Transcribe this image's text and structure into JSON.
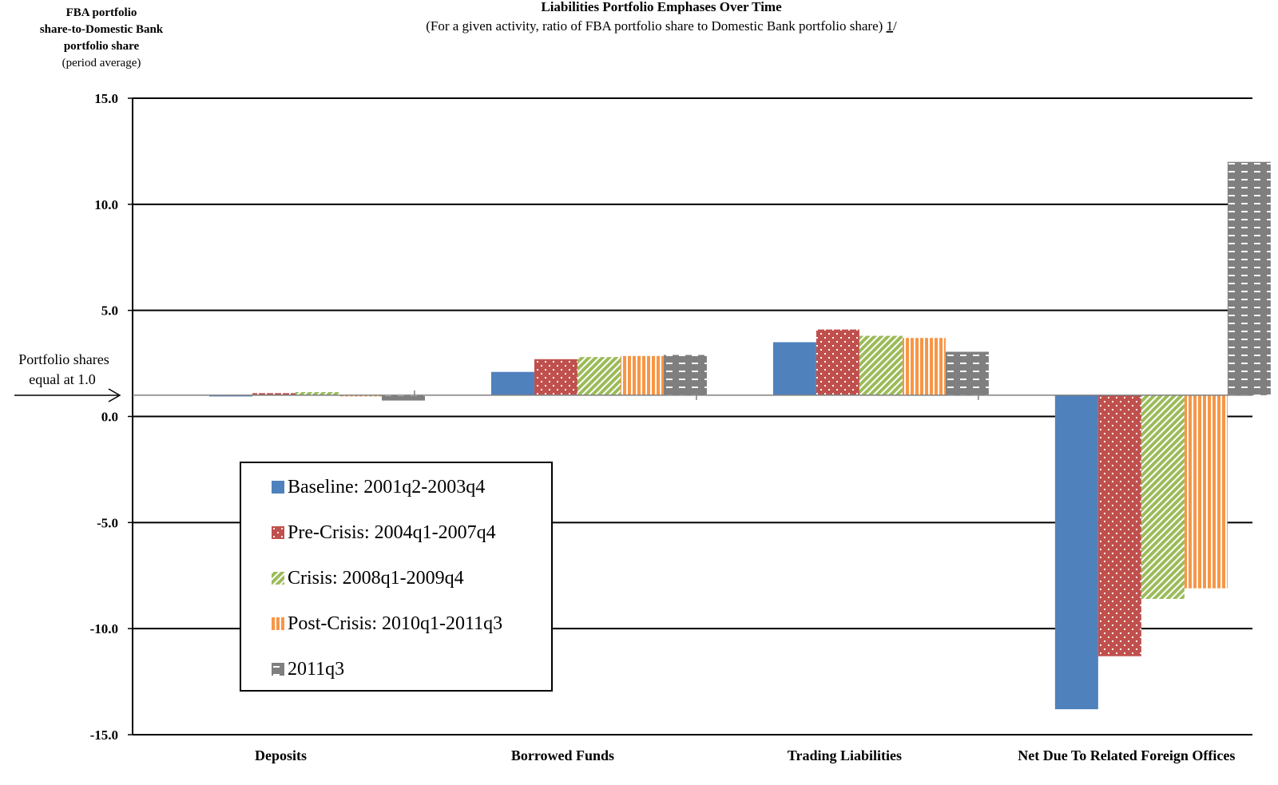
{
  "chart_data": {
    "type": "bar",
    "title": "Liabilities Portfolio Emphases Over Time",
    "subtitle_prefix": "(For a given activity, ratio of FBA portfolio share to Domestic Bank portfolio share) ",
    "subtitle_note": "1",
    "subtitle_suffix": "/",
    "ylabel_lines": [
      "FBA portfolio",
      "share-to-Domestic Bank",
      "portfolio share"
    ],
    "ylabel_sub": "(period average)",
    "annotation_lines": [
      "Portfolio shares",
      "equal at 1.0"
    ],
    "baseline_value": 1.0,
    "ylim": [
      -15,
      15
    ],
    "yticks": [
      15,
      10,
      5,
      0,
      -5,
      -10,
      -15
    ],
    "ytick_labels": [
      "15.0",
      "10.0",
      "5.0",
      "0.0",
      "-5.0",
      "-10.0",
      "-15.0"
    ],
    "grid": true,
    "legend_position": "lower-left",
    "categories": [
      "Deposits",
      "Borrowed Funds",
      "Trading Liabilities",
      "Net Due To Related Foreign Offices"
    ],
    "series": [
      {
        "name": "Baseline: 2001q2-2003q4",
        "color": "#4F81BD",
        "pattern": "solid",
        "values": [
          1.0,
          2.1,
          3.5,
          -13.8
        ]
      },
      {
        "name": "Pre-Crisis: 2004q1-2007q4",
        "color": "#C0504D",
        "pattern": "dots",
        "values": [
          1.1,
          2.7,
          4.1,
          -11.3
        ]
      },
      {
        "name": "Crisis: 2008q1-2009q4",
        "color": "#9BBB59",
        "pattern": "diagonal",
        "values": [
          1.15,
          2.8,
          3.8,
          -8.6
        ]
      },
      {
        "name": "Post-Crisis: 2010q1-2011q3",
        "color": "#F79646",
        "pattern": "vertical",
        "values": [
          1.0,
          2.85,
          3.7,
          -8.1
        ]
      },
      {
        "name": "2011q3",
        "color": "#7F7F7F",
        "pattern": "dashes",
        "values": [
          0.75,
          2.9,
          3.05,
          12.0
        ]
      }
    ]
  }
}
